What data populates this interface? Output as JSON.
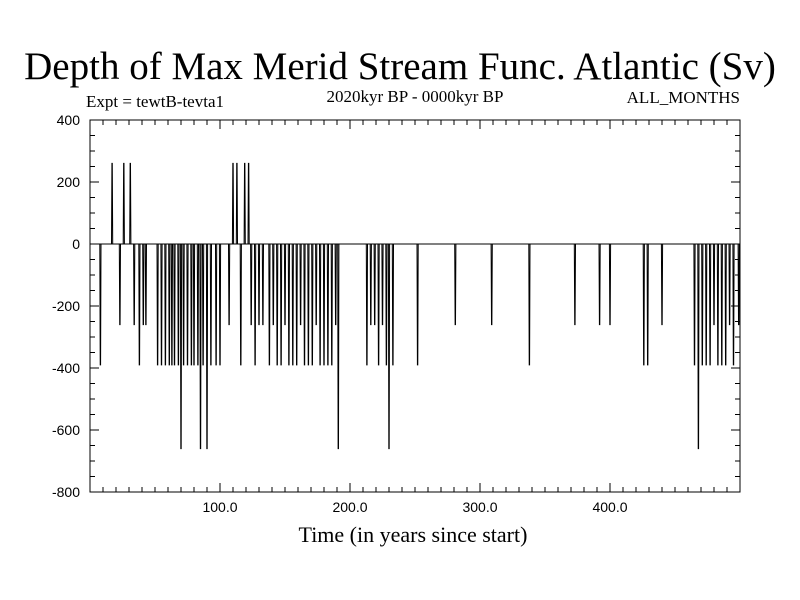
{
  "chart_data": {
    "type": "line",
    "title": "Depth of Max Merid Stream Func. Atlantic (Sv)",
    "left_label": "Expt = tewtB-tevta1",
    "center_label": "2020kyr BP - 0000kyr BP",
    "right_label": "ALL_MONTHS",
    "xlabel": "Time (in years since start)",
    "ylabel": "",
    "xlim": [
      0,
      500
    ],
    "ylim": [
      -800,
      400
    ],
    "x_ticks": [
      100,
      200,
      300,
      400
    ],
    "x_tick_labels": [
      "100.0",
      "200.0",
      "300.0",
      "400.0"
    ],
    "y_ticks": [
      -800,
      -600,
      -400,
      -200,
      0,
      200,
      400
    ],
    "y_tick_labels": [
      "-800",
      "-600",
      "-400",
      "-200",
      "0",
      "200",
      "400"
    ],
    "baseline": 0,
    "series": [
      {
        "name": "depth",
        "events": [
          {
            "x": 8,
            "value": -390
          },
          {
            "x": 17,
            "value": 260
          },
          {
            "x": 23,
            "value": -260
          },
          {
            "x": 26,
            "value": 260
          },
          {
            "x": 31,
            "value": 260
          },
          {
            "x": 34,
            "value": -260
          },
          {
            "x": 38,
            "value": -390
          },
          {
            "x": 41,
            "value": -260
          },
          {
            "x": 43,
            "value": -260
          },
          {
            "x": 52,
            "value": -390
          },
          {
            "x": 55,
            "value": -390
          },
          {
            "x": 58,
            "value": -390
          },
          {
            "x": 61,
            "value": -390
          },
          {
            "x": 63,
            "value": -390
          },
          {
            "x": 65,
            "value": -390
          },
          {
            "x": 68,
            "value": -390
          },
          {
            "x": 70,
            "value": -660
          },
          {
            "x": 72,
            "value": -390
          },
          {
            "x": 75,
            "value": -390
          },
          {
            "x": 78,
            "value": -390
          },
          {
            "x": 80,
            "value": -390
          },
          {
            "x": 83,
            "value": -390
          },
          {
            "x": 85,
            "value": -660
          },
          {
            "x": 87,
            "value": -390
          },
          {
            "x": 90,
            "value": -660
          },
          {
            "x": 93,
            "value": -390
          },
          {
            "x": 97,
            "value": -390
          },
          {
            "x": 100,
            "value": -390
          },
          {
            "x": 107,
            "value": -260
          },
          {
            "x": 110,
            "value": 260
          },
          {
            "x": 113,
            "value": 260
          },
          {
            "x": 116,
            "value": -390
          },
          {
            "x": 119,
            "value": 260
          },
          {
            "x": 122,
            "value": 260
          },
          {
            "x": 124,
            "value": -260
          },
          {
            "x": 127,
            "value": -390
          },
          {
            "x": 130,
            "value": -260
          },
          {
            "x": 133,
            "value": -260
          },
          {
            "x": 138,
            "value": -390
          },
          {
            "x": 141,
            "value": -260
          },
          {
            "x": 144,
            "value": -390
          },
          {
            "x": 147,
            "value": -390
          },
          {
            "x": 150,
            "value": -260
          },
          {
            "x": 153,
            "value": -390
          },
          {
            "x": 156,
            "value": -390
          },
          {
            "x": 159,
            "value": -390
          },
          {
            "x": 162,
            "value": -260
          },
          {
            "x": 165,
            "value": -390
          },
          {
            "x": 168,
            "value": -390
          },
          {
            "x": 171,
            "value": -390
          },
          {
            "x": 174,
            "value": -260
          },
          {
            "x": 177,
            "value": -390
          },
          {
            "x": 180,
            "value": -390
          },
          {
            "x": 183,
            "value": -390
          },
          {
            "x": 186,
            "value": -390
          },
          {
            "x": 189,
            "value": -260
          },
          {
            "x": 191,
            "value": -660
          },
          {
            "x": 213,
            "value": -390
          },
          {
            "x": 216,
            "value": -260
          },
          {
            "x": 219,
            "value": -260
          },
          {
            "x": 222,
            "value": -390
          },
          {
            "x": 225,
            "value": -260
          },
          {
            "x": 228,
            "value": -390
          },
          {
            "x": 230,
            "value": -660
          },
          {
            "x": 233,
            "value": -390
          },
          {
            "x": 252,
            "value": -390
          },
          {
            "x": 281,
            "value": -260
          },
          {
            "x": 309,
            "value": -260
          },
          {
            "x": 338,
            "value": -390
          },
          {
            "x": 373,
            "value": -260
          },
          {
            "x": 392,
            "value": -260
          },
          {
            "x": 400,
            "value": -260
          },
          {
            "x": 426,
            "value": -390
          },
          {
            "x": 429,
            "value": -390
          },
          {
            "x": 440,
            "value": -260
          },
          {
            "x": 465,
            "value": -390
          },
          {
            "x": 468,
            "value": -660
          },
          {
            "x": 471,
            "value": -390
          },
          {
            "x": 474,
            "value": -390
          },
          {
            "x": 477,
            "value": -390
          },
          {
            "x": 480,
            "value": -260
          },
          {
            "x": 483,
            "value": -390
          },
          {
            "x": 486,
            "value": -390
          },
          {
            "x": 489,
            "value": -390
          },
          {
            "x": 492,
            "value": -260
          },
          {
            "x": 495,
            "value": -390
          },
          {
            "x": 499,
            "value": -260
          }
        ]
      }
    ]
  }
}
